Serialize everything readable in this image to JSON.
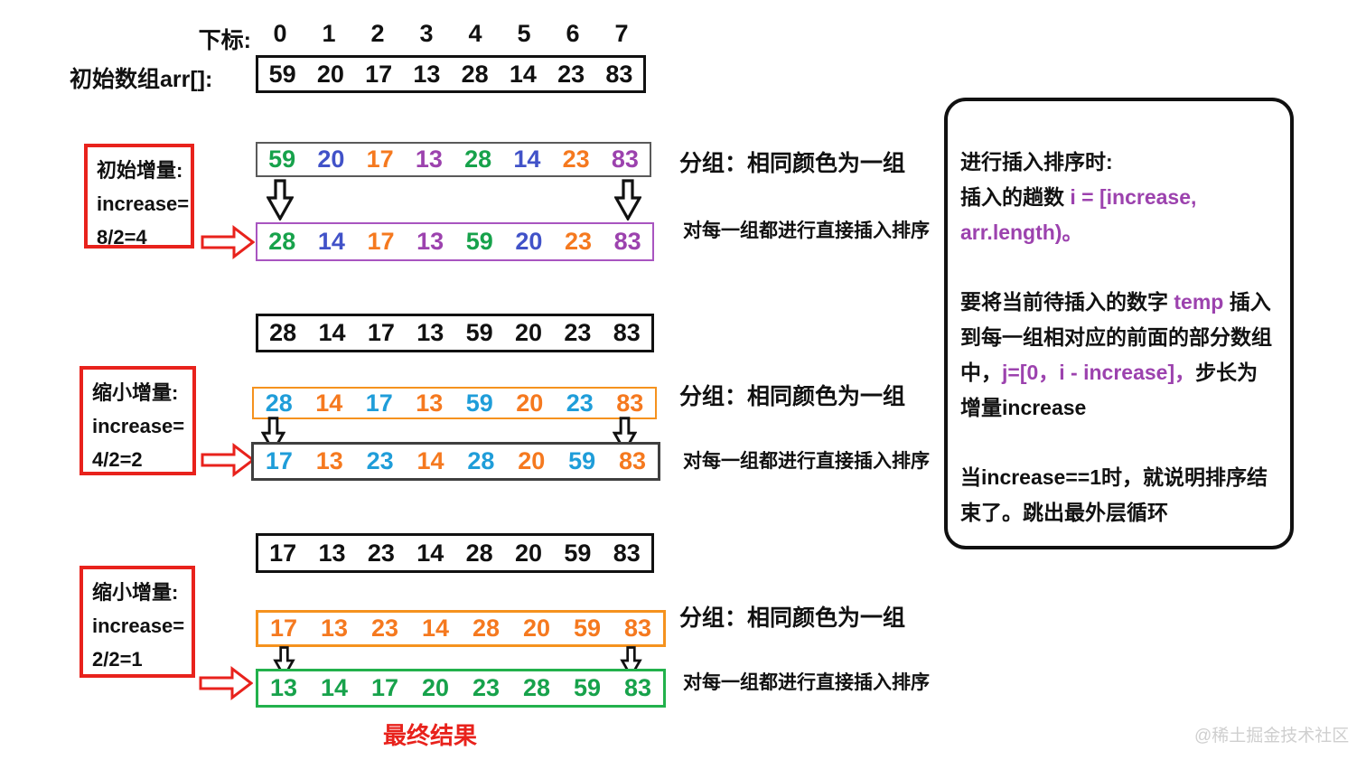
{
  "palette": {
    "black": "#111111",
    "green": "#17a24b",
    "blue": "#4152c8",
    "orange": "#f5791f",
    "purple": "#9c42ae",
    "lightblue": "#1f9dd9",
    "red": "#e8221c"
  },
  "header": {
    "index_label": "下标:",
    "indices": {
      "values": [
        {
          "v": "0",
          "c": "black"
        },
        {
          "v": "1",
          "c": "black"
        },
        {
          "v": "2",
          "c": "black"
        },
        {
          "v": "3",
          "c": "black"
        },
        {
          "v": "4",
          "c": "black"
        },
        {
          "v": "5",
          "c": "black"
        },
        {
          "v": "6",
          "c": "black"
        },
        {
          "v": "7",
          "c": "black"
        }
      ]
    },
    "array_label": "初始数组arr[]:",
    "initial_array": {
      "border": "#111111",
      "values": [
        {
          "v": "59",
          "c": "black"
        },
        {
          "v": "20",
          "c": "black"
        },
        {
          "v": "17",
          "c": "black"
        },
        {
          "v": "13",
          "c": "black"
        },
        {
          "v": "28",
          "c": "black"
        },
        {
          "v": "14",
          "c": "black"
        },
        {
          "v": "23",
          "c": "black"
        },
        {
          "v": "83",
          "c": "black"
        }
      ]
    }
  },
  "captions": {
    "group": "分组：相同颜色为一组",
    "sort": "对每一组都进行直接插入排序"
  },
  "steps": [
    {
      "label_lines": [
        "初始增量:",
        "increase=",
        "8/2=4"
      ],
      "arrays": [
        {
          "border": "#5a5a5a",
          "values": [
            {
              "v": "59",
              "c": "green"
            },
            {
              "v": "20",
              "c": "blue"
            },
            {
              "v": "17",
              "c": "orange"
            },
            {
              "v": "13",
              "c": "purple"
            },
            {
              "v": "28",
              "c": "green"
            },
            {
              "v": "14",
              "c": "blue"
            },
            {
              "v": "23",
              "c": "orange"
            },
            {
              "v": "83",
              "c": "purple"
            }
          ]
        },
        {
          "border": "#a855c0",
          "values": [
            {
              "v": "28",
              "c": "green"
            },
            {
              "v": "14",
              "c": "blue"
            },
            {
              "v": "17",
              "c": "orange"
            },
            {
              "v": "13",
              "c": "purple"
            },
            {
              "v": "59",
              "c": "green"
            },
            {
              "v": "20",
              "c": "blue"
            },
            {
              "v": "23",
              "c": "orange"
            },
            {
              "v": "83",
              "c": "purple"
            }
          ]
        }
      ]
    },
    {
      "label_lines": [
        "缩小增量:",
        "increase=",
        "4/2=2"
      ],
      "arrays": [
        {
          "border": "#111111",
          "values": [
            {
              "v": "28",
              "c": "black"
            },
            {
              "v": "14",
              "c": "black"
            },
            {
              "v": "17",
              "c": "black"
            },
            {
              "v": "13",
              "c": "black"
            },
            {
              "v": "59",
              "c": "black"
            },
            {
              "v": "20",
              "c": "black"
            },
            {
              "v": "23",
              "c": "black"
            },
            {
              "v": "83",
              "c": "black"
            }
          ]
        },
        {
          "border": "#f5921e",
          "values": [
            {
              "v": "28",
              "c": "lightblue"
            },
            {
              "v": "14",
              "c": "orange"
            },
            {
              "v": "17",
              "c": "lightblue"
            },
            {
              "v": "13",
              "c": "orange"
            },
            {
              "v": "59",
              "c": "lightblue"
            },
            {
              "v": "20",
              "c": "orange"
            },
            {
              "v": "23",
              "c": "lightblue"
            },
            {
              "v": "83",
              "c": "orange"
            }
          ]
        },
        {
          "border": "#3f3f3f",
          "values": [
            {
              "v": "17",
              "c": "lightblue"
            },
            {
              "v": "13",
              "c": "orange"
            },
            {
              "v": "23",
              "c": "lightblue"
            },
            {
              "v": "14",
              "c": "orange"
            },
            {
              "v": "28",
              "c": "lightblue"
            },
            {
              "v": "20",
              "c": "orange"
            },
            {
              "v": "59",
              "c": "lightblue"
            },
            {
              "v": "83",
              "c": "orange"
            }
          ]
        }
      ]
    },
    {
      "label_lines": [
        "缩小增量:",
        "increase=",
        "2/2=1"
      ],
      "arrays": [
        {
          "border": "#111111",
          "values": [
            {
              "v": "17",
              "c": "black"
            },
            {
              "v": "13",
              "c": "black"
            },
            {
              "v": "23",
              "c": "black"
            },
            {
              "v": "14",
              "c": "black"
            },
            {
              "v": "28",
              "c": "black"
            },
            {
              "v": "20",
              "c": "black"
            },
            {
              "v": "59",
              "c": "black"
            },
            {
              "v": "83",
              "c": "black"
            }
          ]
        },
        {
          "border": "#f5921e",
          "values": [
            {
              "v": "17",
              "c": "orange"
            },
            {
              "v": "13",
              "c": "orange"
            },
            {
              "v": "23",
              "c": "orange"
            },
            {
              "v": "14",
              "c": "orange"
            },
            {
              "v": "28",
              "c": "orange"
            },
            {
              "v": "20",
              "c": "orange"
            },
            {
              "v": "59",
              "c": "orange"
            },
            {
              "v": "83",
              "c": "orange"
            }
          ]
        },
        {
          "border": "#22b14c",
          "values": [
            {
              "v": "13",
              "c": "green"
            },
            {
              "v": "14",
              "c": "green"
            },
            {
              "v": "17",
              "c": "green"
            },
            {
              "v": "20",
              "c": "green"
            },
            {
              "v": "23",
              "c": "green"
            },
            {
              "v": "28",
              "c": "green"
            },
            {
              "v": "59",
              "c": "green"
            },
            {
              "v": "83",
              "c": "green"
            }
          ]
        }
      ]
    }
  ],
  "panel": {
    "lines": [
      [
        {
          "t": "进行插入排序时:",
          "c": "black"
        }
      ],
      [
        {
          "t": "插入的趟数 ",
          "c": "black"
        },
        {
          "t": "i = [increase,",
          "c": "purple"
        }
      ],
      [
        {
          "t": "arr.length)。",
          "c": "purple"
        }
      ],
      [
        {
          "t": "要将当前待插入的数字 ",
          "c": "black"
        },
        {
          "t": "temp",
          "c": "purple"
        },
        {
          "t": " 插入",
          "c": "black"
        }
      ],
      [
        {
          "t": "到每一组相对应的前面的部分数组",
          "c": "black"
        }
      ],
      [
        {
          "t": "中，",
          "c": "black"
        },
        {
          "t": "j=[0，i - increase]，",
          "c": "purple"
        },
        {
          "t": "步长为",
          "c": "black"
        }
      ],
      [
        {
          "t": "增量increase",
          "c": "black"
        }
      ],
      [
        {
          "t": "当increase==1时，就说明排序结",
          "c": "black"
        }
      ],
      [
        {
          "t": "束了。跳出最外层循环",
          "c": "black"
        }
      ]
    ]
  },
  "footer": {
    "final_label": "最终结果",
    "watermark": "@稀土掘金技术社区"
  }
}
